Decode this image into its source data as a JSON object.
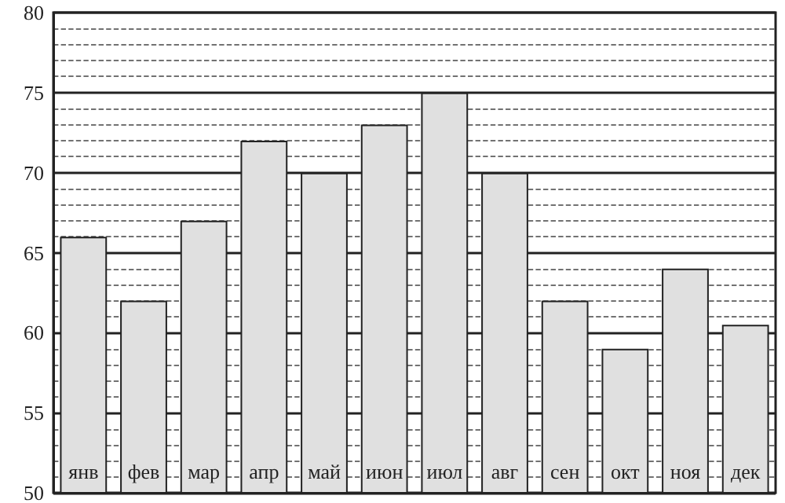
{
  "chart_data": {
    "type": "bar",
    "categories": [
      "янв",
      "фев",
      "мар",
      "апр",
      "май",
      "июн",
      "июл",
      "авг",
      "сен",
      "окт",
      "ноя",
      "дек"
    ],
    "values": [
      66,
      62,
      67,
      72,
      70,
      73,
      75,
      70,
      62,
      59,
      64,
      60.5
    ],
    "color": "#e0e0e0",
    "ylim": [
      50,
      80
    ],
    "yticks": [
      50,
      55,
      60,
      65,
      70,
      75,
      80
    ],
    "grid": "y"
  }
}
